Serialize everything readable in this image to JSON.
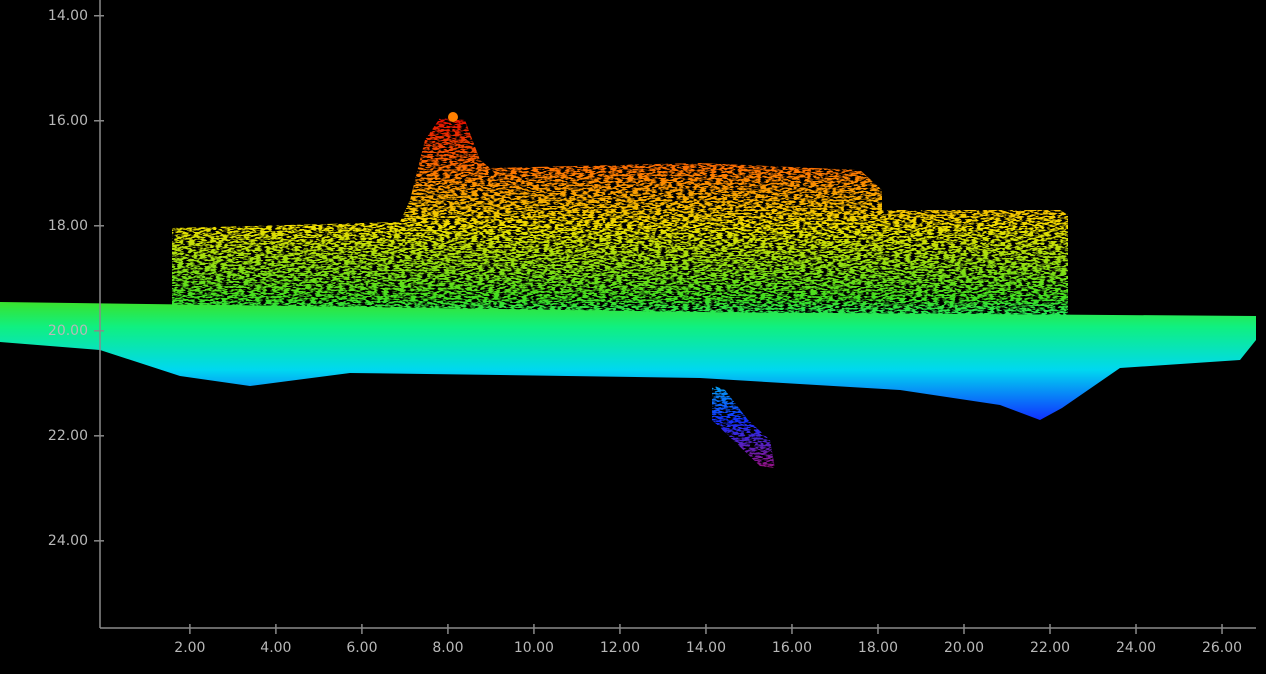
{
  "chart_data": {
    "type": "scatter",
    "xlim": [
      -0.09,
      26.79
    ],
    "ylim": [
      25.66,
      13.7
    ],
    "xticks": [
      {
        "value": 2,
        "label": "2.00"
      },
      {
        "value": 4,
        "label": "4.00"
      },
      {
        "value": 6,
        "label": "6.00"
      },
      {
        "value": 8,
        "label": "8.00"
      },
      {
        "value": 10,
        "label": "10.00"
      },
      {
        "value": 12,
        "label": "12.00"
      },
      {
        "value": 14,
        "label": "14.00"
      },
      {
        "value": 16,
        "label": "16.00"
      },
      {
        "value": 18,
        "label": "18.00"
      },
      {
        "value": 20,
        "label": "20.00"
      },
      {
        "value": 22,
        "label": "22.00"
      },
      {
        "value": 24,
        "label": "24.00"
      },
      {
        "value": 26,
        "label": "26.00"
      }
    ],
    "yticks": [
      {
        "value": 14,
        "label": "14.00"
      },
      {
        "value": 16,
        "label": "16.00"
      },
      {
        "value": 18,
        "label": "18.00"
      },
      {
        "value": 20,
        "label": "20.00"
      },
      {
        "value": 22,
        "label": "22.00"
      },
      {
        "value": 24,
        "label": "24.00"
      }
    ],
    "grid": false
  }
}
